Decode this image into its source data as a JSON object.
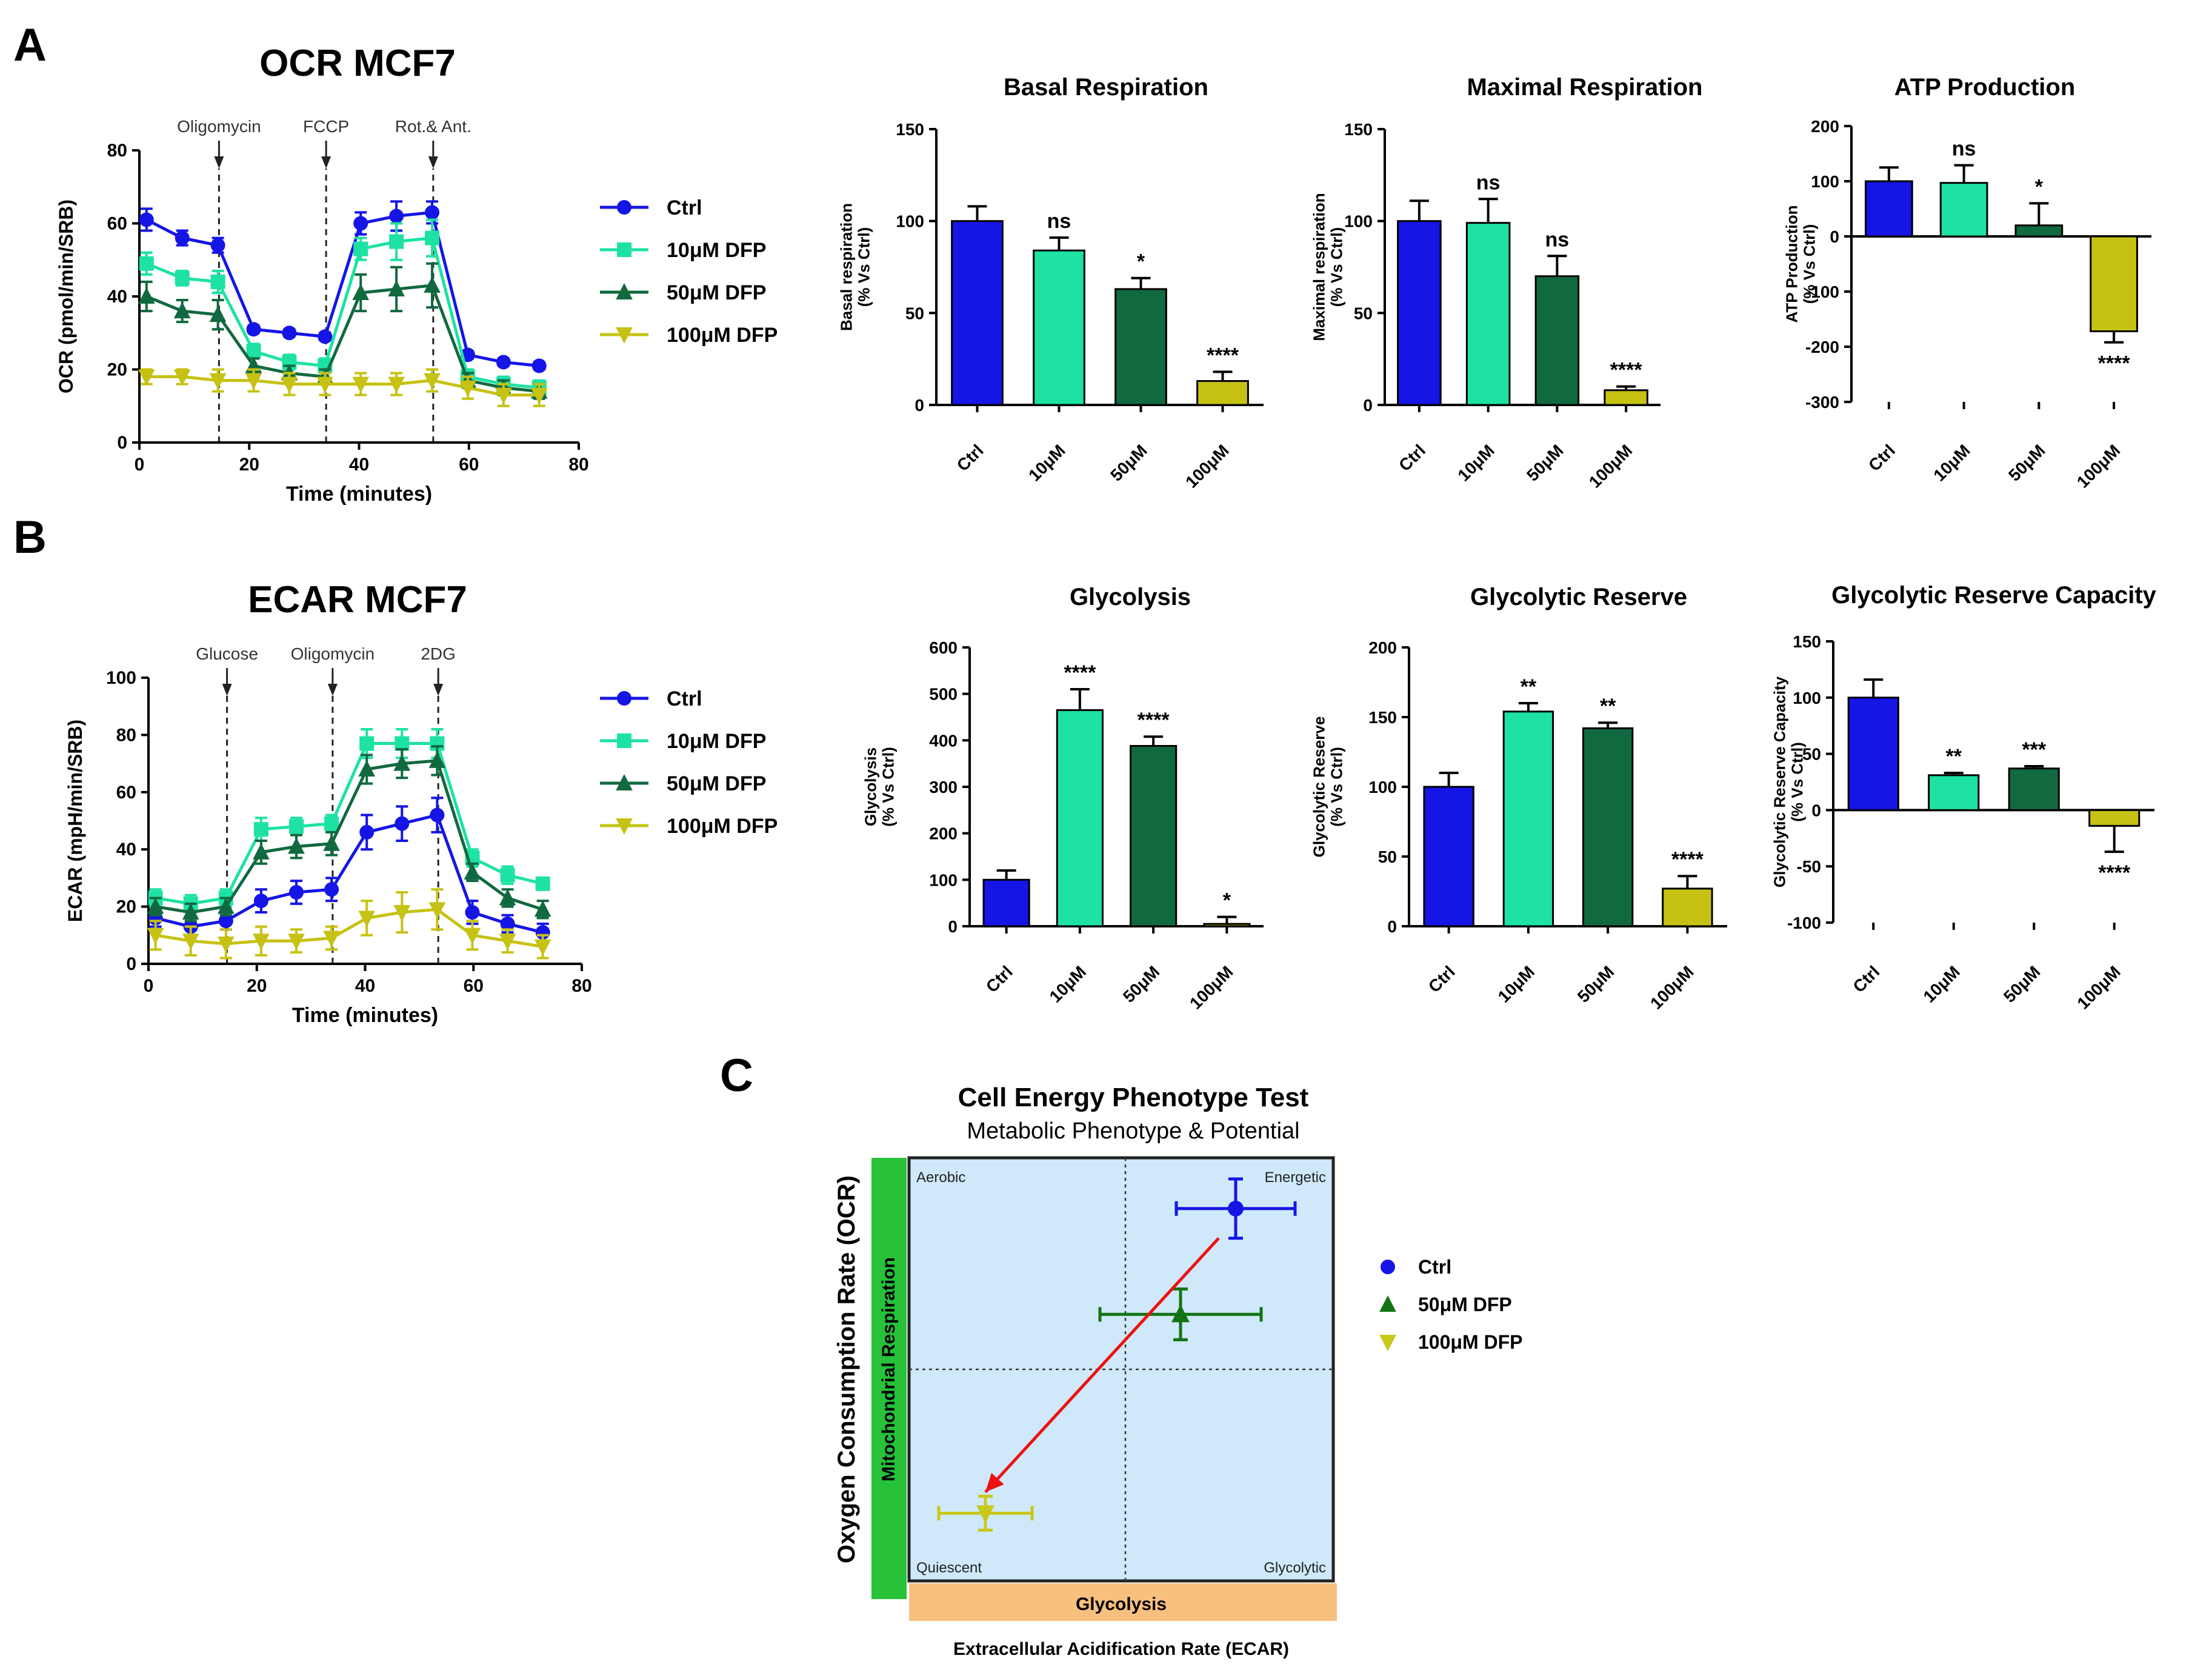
{
  "panel_labels": {
    "a": "A",
    "b": "B",
    "c": "C"
  },
  "colors": {
    "ctrl": "#1515e6",
    "d10": "#1de2a4",
    "d50": "#11693f",
    "d100": "#c6c214",
    "c50": "#137413",
    "c100": "#c8c81c",
    "phenoBg": "#cfe9fb",
    "mito": "#27c13a",
    "glyc": "#f8c07e",
    "arrow": "#ee1111"
  },
  "chart_data": [
    {
      "id": "ocr",
      "type": "line",
      "title": "OCR MCF7",
      "xlabel": "Time (minutes)",
      "ylabel": "OCR (pmol/min/SRB)",
      "xlim": [
        0,
        80
      ],
      "ylim": [
        0,
        80
      ],
      "xticks": [
        0,
        20,
        40,
        60,
        80
      ],
      "yticks": [
        0,
        20,
        40,
        60,
        80
      ],
      "injections": [
        {
          "label": "Oligomycin",
          "x": 14.5
        },
        {
          "label": "FCCP",
          "x": 34
        },
        {
          "label": "Rot.& Ant.",
          "x": 53.5
        }
      ],
      "x": [
        1.3,
        7.8,
        14.3,
        20.8,
        27.3,
        33.8,
        40.3,
        46.8,
        53.3,
        59.8,
        66.3,
        72.8
      ],
      "series": [
        {
          "name": "Ctrl",
          "color": "#1515e6",
          "marker": "circle",
          "values": [
            61,
            56,
            54,
            31,
            30,
            29,
            60,
            62,
            63,
            24,
            22,
            21
          ],
          "errors": [
            3,
            2,
            2,
            1,
            1,
            1,
            3,
            4,
            3,
            1,
            1,
            1
          ]
        },
        {
          "name": "10μM DFP",
          "color": "#1de2a4",
          "marker": "square",
          "values": [
            49,
            45,
            44,
            25,
            22,
            21,
            53,
            55,
            56,
            18,
            16,
            15
          ],
          "errors": [
            3,
            2,
            3,
            2,
            2,
            2,
            3,
            5,
            5,
            2,
            2,
            2
          ]
        },
        {
          "name": "50μM DFP",
          "color": "#11693f",
          "marker": "triangle-up",
          "values": [
            40,
            36,
            35,
            21,
            19,
            18,
            41,
            42,
            43,
            17,
            15,
            14
          ],
          "errors": [
            4,
            3,
            4,
            2,
            2,
            2,
            5,
            6,
            6,
            2,
            2,
            2
          ]
        },
        {
          "name": "100μM DFP",
          "color": "#c6c214",
          "marker": "triangle-down",
          "values": [
            18,
            18,
            17,
            17,
            16,
            16,
            16,
            16,
            17,
            15,
            13,
            13
          ],
          "errors": [
            2,
            2,
            3,
            3,
            3,
            3,
            3,
            3,
            3,
            3,
            3,
            3
          ]
        }
      ]
    },
    {
      "id": "basal",
      "type": "bar",
      "title": "Basal  Respiration",
      "ylabel": "Basal respiration\n(% Vs Ctrl)",
      "ylim": [
        0,
        150
      ],
      "yticks": [
        0,
        50,
        100,
        150
      ],
      "categories": [
        "Ctrl",
        "10μM",
        "50μM",
        "100μM"
      ],
      "values": [
        100,
        84,
        63,
        13
      ],
      "errors": [
        8,
        7,
        6,
        5
      ],
      "significance": [
        "",
        "ns",
        "*",
        "****"
      ],
      "colors": [
        "#1515e6",
        "#1de2a4",
        "#11693f",
        "#c6c214"
      ]
    },
    {
      "id": "maximal",
      "type": "bar",
      "title": "Maximal  Respiration",
      "ylabel": "Maximal respiration\n(% Vs Ctrl)",
      "ylim": [
        0,
        150
      ],
      "yticks": [
        0,
        50,
        100,
        150
      ],
      "categories": [
        "Ctrl",
        "10μM",
        "50μM",
        "100μM"
      ],
      "values": [
        100,
        99,
        70,
        8
      ],
      "errors": [
        11,
        13,
        11,
        2
      ],
      "significance": [
        "",
        "ns",
        "ns",
        "****"
      ],
      "colors": [
        "#1515e6",
        "#1de2a4",
        "#11693f",
        "#c6c214"
      ]
    },
    {
      "id": "atp",
      "type": "bar",
      "title": "ATP Production",
      "ylabel": "ATP Production\n(% Vs Ctrl)",
      "ylim": [
        -300,
        200
      ],
      "yticks": [
        -300,
        -200,
        -100,
        0,
        100,
        200
      ],
      "categories": [
        "Ctrl",
        "10μM",
        "50μM",
        "100μM"
      ],
      "values": [
        100,
        97,
        20,
        -172
      ],
      "errors": [
        25,
        32,
        40,
        20
      ],
      "significance": [
        "",
        "ns",
        "*",
        "****"
      ],
      "colors": [
        "#1515e6",
        "#1de2a4",
        "#11693f",
        "#c6c214"
      ]
    },
    {
      "id": "ecar",
      "type": "line",
      "title": "ECAR MCF7",
      "xlabel": "Time (minutes)",
      "ylabel": "ECAR (mpH/min/SRB)",
      "xlim": [
        0,
        80
      ],
      "ylim": [
        0,
        100
      ],
      "xticks": [
        0,
        20,
        40,
        60,
        80
      ],
      "yticks": [
        0,
        20,
        40,
        60,
        80,
        100
      ],
      "injections": [
        {
          "label": "Glucose",
          "x": 14.5
        },
        {
          "label": "Oligomycin",
          "x": 34
        },
        {
          "label": "2DG",
          "x": 53.5
        }
      ],
      "x": [
        1.3,
        7.8,
        14.3,
        20.8,
        27.3,
        33.8,
        40.3,
        46.8,
        53.3,
        59.8,
        66.3,
        72.8
      ],
      "series": [
        {
          "name": "Ctrl",
          "color": "#1515e6",
          "marker": "circle",
          "values": [
            16,
            13,
            15,
            22,
            25,
            26,
            46,
            49,
            52,
            18,
            14,
            11
          ],
          "errors": [
            3,
            3,
            3,
            4,
            4,
            4,
            6,
            6,
            6,
            4,
            3,
            3
          ]
        },
        {
          "name": "10μM DFP",
          "color": "#1de2a4",
          "marker": "square",
          "values": [
            23,
            21,
            23,
            47,
            48,
            49,
            77,
            77,
            77,
            37,
            31,
            28
          ],
          "errors": [
            3,
            3,
            3,
            4,
            3,
            3,
            5,
            5,
            5,
            3,
            3,
            2
          ]
        },
        {
          "name": "50μM DFP",
          "color": "#11693f",
          "marker": "triangle-up",
          "values": [
            20,
            18,
            20,
            39,
            41,
            42,
            68,
            70,
            71,
            32,
            23,
            19
          ],
          "errors": [
            3,
            3,
            3,
            4,
            4,
            4,
            5,
            5,
            5,
            3,
            3,
            3
          ]
        },
        {
          "name": "100μM DFP",
          "color": "#c6c214",
          "marker": "triangle-down",
          "values": [
            10,
            8,
            7,
            8,
            8,
            9,
            16,
            18,
            19,
            10,
            8,
            6
          ],
          "errors": [
            5,
            5,
            5,
            5,
            4,
            4,
            6,
            7,
            7,
            5,
            4,
            4
          ]
        }
      ]
    },
    {
      "id": "glycolysis",
      "type": "bar",
      "title": "Glycolysis",
      "ylabel": "Glycolysis\n(% Vs Ctrl)",
      "ylim": [
        0,
        600
      ],
      "yticks": [
        0,
        100,
        200,
        300,
        400,
        500,
        600
      ],
      "categories": [
        "Ctrl",
        "10μM",
        "50μM",
        "100μM"
      ],
      "values": [
        100,
        465,
        388,
        5
      ],
      "errors": [
        20,
        45,
        20,
        15
      ],
      "significance": [
        "",
        "****",
        "****",
        "*"
      ],
      "colors": [
        "#1515e6",
        "#1de2a4",
        "#11693f",
        "#c6c214"
      ]
    },
    {
      "id": "glycreserve",
      "type": "bar",
      "title": "Glycolytic Reserve",
      "ylabel": "Glycolytic Reserve\n(% Vs Ctrl)",
      "ylim": [
        0,
        200
      ],
      "yticks": [
        0,
        50,
        100,
        150,
        200
      ],
      "categories": [
        "Ctrl",
        "10μM",
        "50μM",
        "100μM"
      ],
      "values": [
        100,
        154,
        142,
        27
      ],
      "errors": [
        10,
        6,
        4,
        9
      ],
      "significance": [
        "",
        "**",
        "**",
        "****"
      ],
      "colors": [
        "#1515e6",
        "#1de2a4",
        "#11693f",
        "#c6c214"
      ]
    },
    {
      "id": "glyccapacity",
      "type": "bar",
      "title": "Glycolytic Reserve Capacity",
      "ylabel": "Glycolytic Reserve Capacity\n(% Vs Ctrl)",
      "ylim": [
        -100,
        150
      ],
      "yticks": [
        -100,
        -50,
        0,
        50,
        100,
        150
      ],
      "categories": [
        "Ctrl",
        "10μM",
        "50μM",
        "100μM"
      ],
      "values": [
        100,
        31,
        37,
        -14
      ],
      "errors": [
        16,
        2,
        2,
        23
      ],
      "significance": [
        "",
        "**",
        "***",
        "****"
      ],
      "colors": [
        "#1515e6",
        "#1de2a4",
        "#11693f",
        "#c6c214"
      ]
    },
    {
      "id": "phenotype",
      "type": "scatter",
      "title": "Cell Energy Phenotype Test",
      "subtitle": "Metabolic Phenotype & Potential",
      "xlabel": "Extracellular Acidification Rate (ECAR)",
      "ylabel": "Oxygen Consumption Rate (OCR)",
      "ybar_label": "Mitochondrial Respiration",
      "xbar_label": "Glycolysis",
      "quadrants": [
        "Aerobic",
        "Energetic",
        "Quiescent",
        "Glycolytic"
      ],
      "xlim": [
        0,
        100
      ],
      "ylim": [
        0,
        100
      ],
      "divider": {
        "x": 51,
        "y": 50
      },
      "points": [
        {
          "name": "Ctrl",
          "marker": "circle",
          "color": "#1515e6",
          "x": 77,
          "y": 88,
          "xerr": 14,
          "yerr": 7
        },
        {
          "name": "50μM DFP",
          "marker": "triangle-up",
          "color": "#137413",
          "x": 64,
          "y": 63,
          "xerr": 19,
          "yerr": 6
        },
        {
          "name": "100μM DFP",
          "marker": "triangle-down",
          "color": "#c8c81c",
          "x": 18,
          "y": 16,
          "xerr": 11,
          "yerr": 4
        }
      ],
      "arrow": {
        "from": [
          73,
          81
        ],
        "to": [
          18,
          21
        ]
      }
    }
  ]
}
